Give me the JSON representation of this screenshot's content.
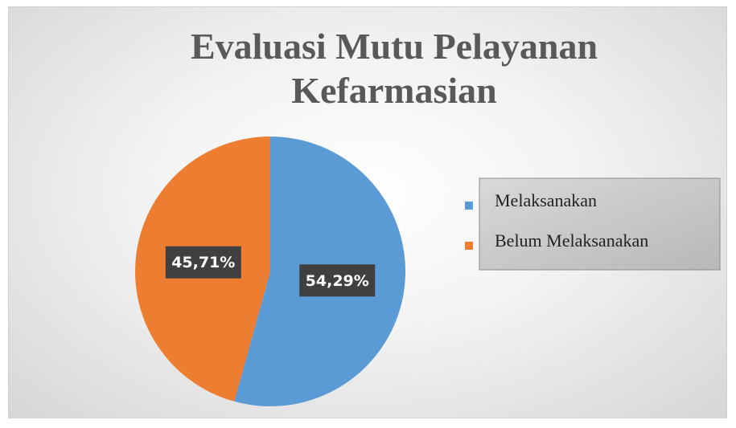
{
  "chart_data": {
    "type": "pie",
    "title": "Evaluasi Mutu Pelayanan Kefarmasian",
    "categories": [
      "Melaksanakan",
      "Belum Melaksanakan"
    ],
    "values": [
      54.29,
      45.71
    ],
    "value_labels": [
      "54,29%",
      "45,71%"
    ],
    "colors": [
      "#5b9bd5",
      "#ed7d31"
    ],
    "legend": "right"
  }
}
